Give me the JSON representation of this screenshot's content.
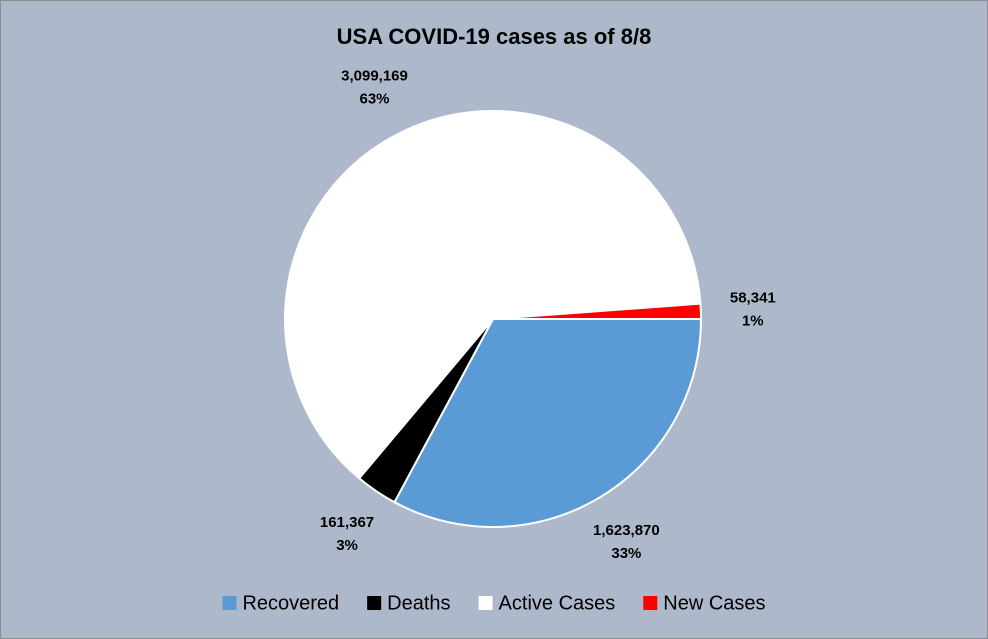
{
  "chart_data": {
    "type": "pie",
    "title": "USA COVID-19 cases as of 8/8",
    "categories": [
      "Recovered",
      "Deaths",
      "Active Cases",
      "New Cases"
    ],
    "values": [
      1623870,
      161367,
      3099169,
      58341
    ],
    "value_labels": [
      "1,623,870",
      "161,367",
      "3,099,169",
      "58,341"
    ],
    "percentages": [
      33,
      3,
      63,
      1
    ],
    "percentage_labels": [
      "33%",
      "3%",
      "63%",
      "1%"
    ],
    "colors": [
      "#5b9bd5",
      "#000000",
      "#ffffff",
      "#ff0000"
    ],
    "legend": "bottom"
  }
}
